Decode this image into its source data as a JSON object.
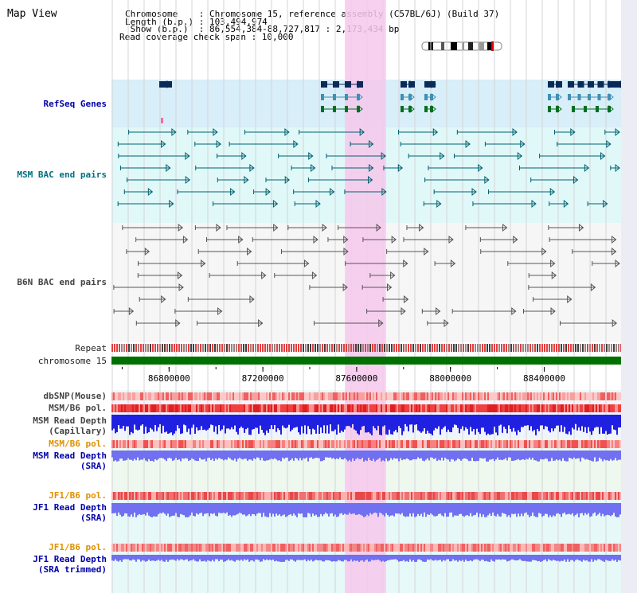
{
  "header": {
    "title": "Map View",
    "chromosome_line": "Chromosome    : Chromosome 15, reference assembly (C57BL/6J) (Build 37)",
    "length_line": "Length (b.p.) : 103,494,974",
    "show_line": " Show (b.p.)  : 86,554,384-88,727,817 : 2,173,434 bp",
    "coverage_line": "Read coverage check span : 10,000"
  },
  "labels": {
    "refseq": "RefSeq Genes",
    "msm_bac": "MSM BAC end pairs",
    "b6n_bac": "B6N BAC end pairs",
    "repeat": "Repeat",
    "chromosome": "chromosome 15",
    "dbsnp": "dbSNP(Mouse)",
    "msm_pol": "MSM/B6 pol.",
    "msm_depth_cap": "MSM Read Depth",
    "msm_depth_cap2": "(Capillary)",
    "msm_pol2": "MSM/B6 pol.",
    "msm_depth_sra": "MSM Read Depth",
    "msm_depth_sra2": "(SRA)",
    "jf1_pol": "JF1/B6 pol.",
    "jf1_depth": "JF1 Read Depth",
    "jf1_depth2": "(SRA)",
    "jf1_pol2": "JF1/B6 pol.",
    "jf1_depth_trim": "JF1 Read Depth",
    "jf1_depth_trim2": "(SRA trimmed)"
  },
  "axis": {
    "start": 86554384,
    "end": 88727817,
    "ticks": [
      86800000,
      87200000,
      87600000,
      88000000,
      88400000
    ],
    "tick_labels": [
      "86800000",
      "87200000",
      "87600000",
      "88000000",
      "88400000"
    ]
  },
  "highlight": {
    "start": 87550000,
    "end": 87725000
  },
  "colors": {
    "refseq_bg": "#d8eef8",
    "msm_bg": "#e0f8f8",
    "b6n_bg": "#f6f6f6",
    "highlight": "#f6c8ec",
    "chrom_bar": "#007000",
    "gene_dark": "#0a2a5a",
    "gene_mid": "#4090b0",
    "gene_green": "#007020",
    "msm_pair": "#006070",
    "b6n_pair": "#555555",
    "snp": "#f06060",
    "depth_cap": "#2020e0",
    "depth_sra": "#7070f0"
  }
}
